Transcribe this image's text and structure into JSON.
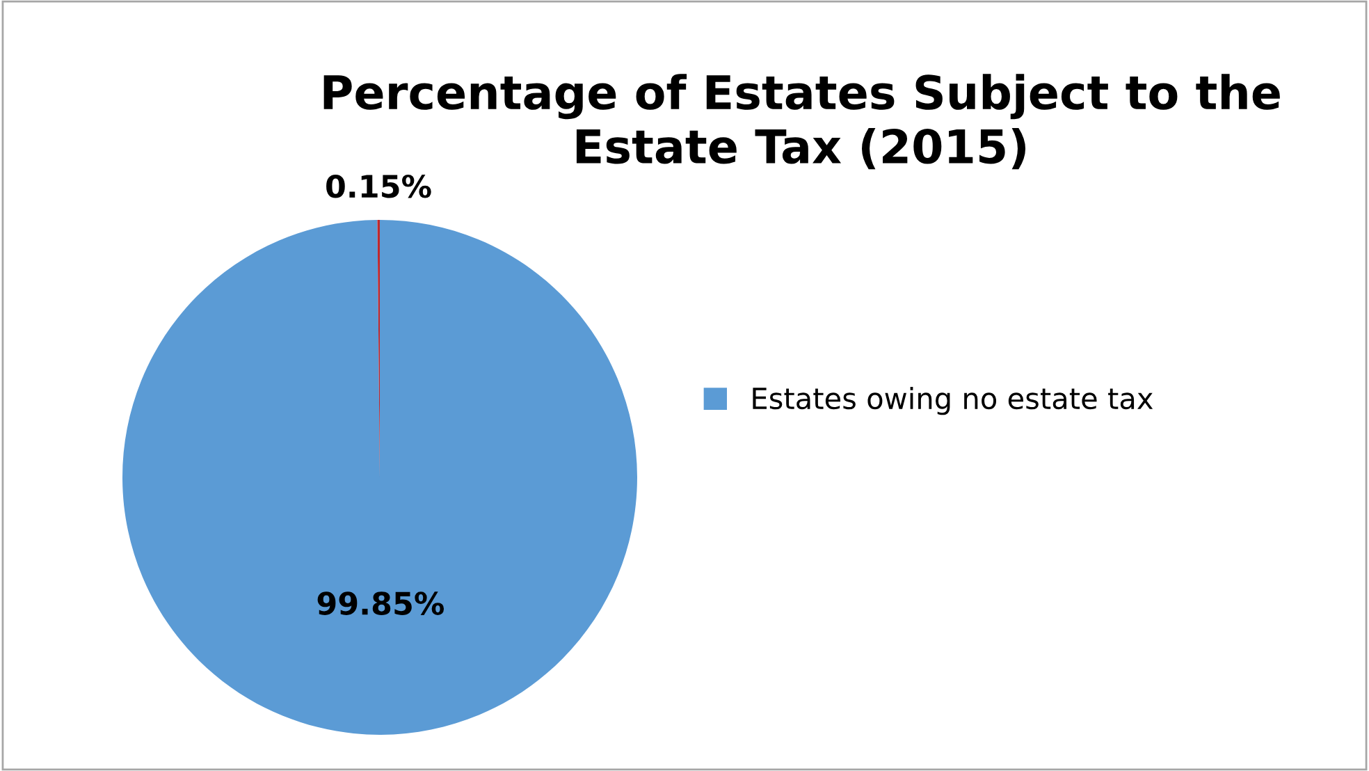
{
  "chart_data": {
    "type": "pie",
    "title": "Percentage of Estates Subject to the\nEstate Tax (2015)",
    "categories": [
      "Estates owing no estate tax",
      null
    ],
    "values": [
      99.85,
      0.15
    ],
    "colors": [
      "#5b9bd5",
      "#c0282d"
    ],
    "value_labels": [
      "99.85%",
      "0.15%"
    ],
    "legend": "right"
  }
}
